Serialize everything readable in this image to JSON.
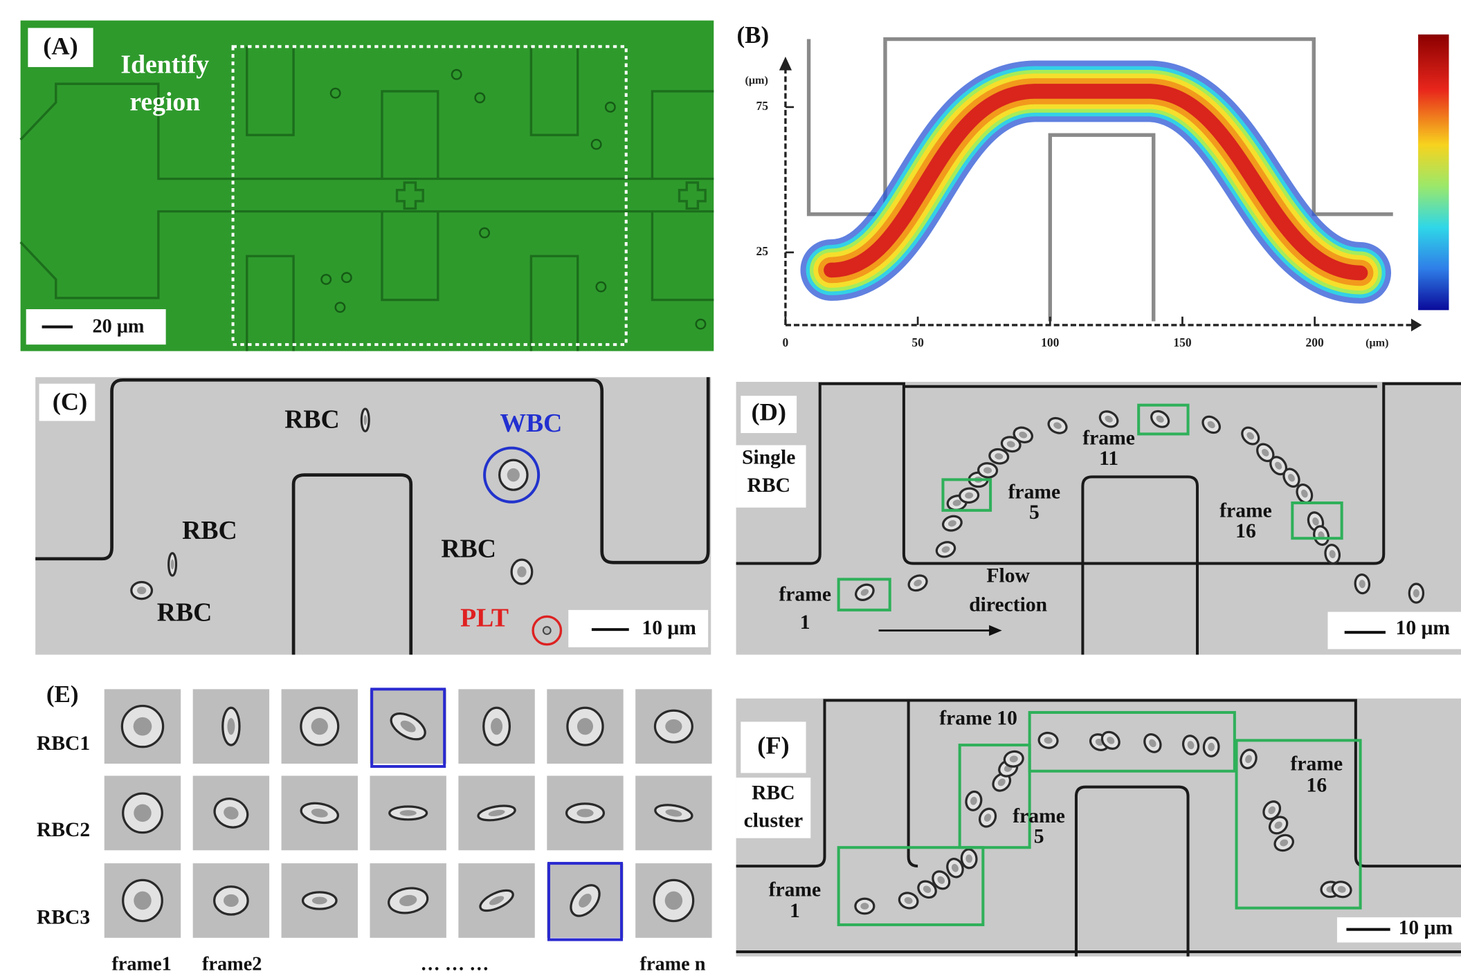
{
  "panel_a": {
    "label": "(A)",
    "region": [
      "Identify",
      "region"
    ],
    "scale_bar": "20 μm"
  },
  "panel_b": {
    "label": "(B)",
    "y_unit": "(μm)",
    "y_ticks": [
      75,
      25
    ],
    "x_ticks": [
      0,
      50,
      100,
      150,
      200
    ],
    "x_unit": "(μm)"
  },
  "panel_c": {
    "label": "(C)",
    "rbc_labels": [
      "RBC",
      "RBC",
      "RBC",
      "RBC"
    ],
    "wbc": "WBC",
    "plt": "PLT",
    "scale_bar": "10 μm"
  },
  "panel_d": {
    "label": "(D)",
    "caption": [
      "Single",
      "RBC"
    ],
    "frames": [
      [
        "frame",
        "1"
      ],
      [
        "frame",
        "5"
      ],
      [
        "frame",
        "11"
      ],
      [
        "frame",
        "16"
      ]
    ],
    "flow": [
      "Flow",
      "direction"
    ],
    "scale_bar": "10 μm"
  },
  "panel_e": {
    "label": "(E)",
    "rows": [
      "RBC1",
      "RBC2",
      "RBC3"
    ],
    "columns": [
      "frame1",
      "frame2",
      "… … …",
      "frame n"
    ]
  },
  "panel_f": {
    "label": "(F)",
    "caption": [
      "RBC",
      "cluster"
    ],
    "frames": [
      [
        "frame 10"
      ],
      [
        "frame",
        "5"
      ],
      [
        "frame",
        "16"
      ],
      [
        "frame",
        "1"
      ]
    ],
    "scale_bar": "10 μm"
  }
}
